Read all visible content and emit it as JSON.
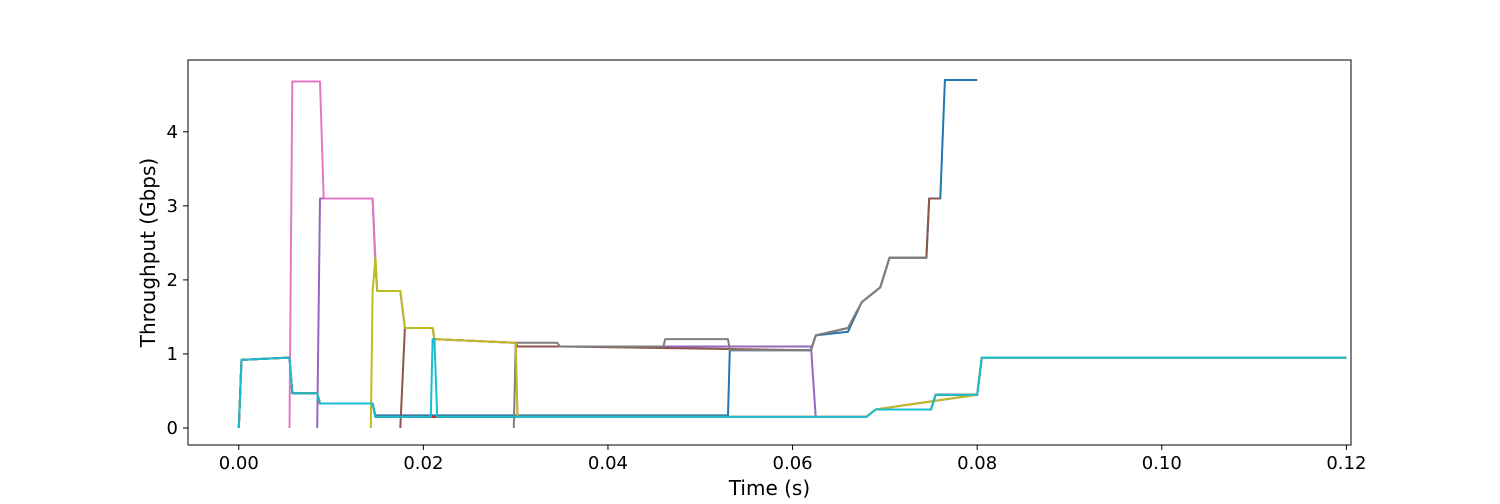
{
  "chart_data": {
    "type": "line",
    "title": "",
    "xlabel": "Time (s)",
    "ylabel": "Throughput (Gbps)",
    "xlim": [
      -0.0055,
      0.1205
    ],
    "ylim": [
      -0.23,
      4.97
    ],
    "x_ticks": [
      0.0,
      0.02,
      0.04,
      0.06,
      0.08,
      0.1,
      0.12
    ],
    "x_tick_labels": [
      "0.00",
      "0.02",
      "0.04",
      "0.06",
      "0.08",
      "0.10",
      "0.12"
    ],
    "y_ticks": [
      0,
      1,
      2,
      3,
      4
    ],
    "y_tick_labels": [
      "0",
      "1",
      "2",
      "3",
      "4"
    ],
    "grid": false,
    "legend": "none",
    "series": [
      {
        "color": "#1f77b4",
        "points": [
          [
            0,
            0
          ],
          [
            0.0003,
            0.92
          ],
          [
            0.0055,
            0.95
          ],
          [
            0.0058,
            0.47
          ],
          [
            0.0085,
            0.47
          ],
          [
            0.0088,
            0.33
          ],
          [
            0.0145,
            0.33
          ],
          [
            0.0148,
            0.17
          ],
          [
            0.053,
            0.17
          ],
          [
            0.0532,
            1.05
          ],
          [
            0.062,
            1.05
          ],
          [
            0.0625,
            1.25
          ],
          [
            0.066,
            1.3
          ],
          [
            0.0675,
            1.7
          ],
          [
            0.0695,
            1.9
          ],
          [
            0.0705,
            2.3
          ],
          [
            0.0745,
            2.3
          ],
          [
            0.0748,
            3.1
          ],
          [
            0.076,
            3.1
          ],
          [
            0.0765,
            4.7
          ],
          [
            0.08,
            4.7
          ]
        ]
      },
      {
        "color": "#ff7f0e",
        "points": [
          [
            0,
            0
          ],
          [
            0.0003,
            0.92
          ],
          [
            0.0055,
            0.95
          ],
          [
            0.0058,
            0.47
          ],
          [
            0.0085,
            0.47
          ],
          [
            0.0088,
            0.33
          ],
          [
            0.0145,
            0.33
          ],
          [
            0.0148,
            0.15
          ],
          [
            0.068,
            0.15
          ],
          [
            0.069,
            0.25
          ],
          [
            0.075,
            0.25
          ],
          [
            0.0755,
            0.45
          ],
          [
            0.08,
            0.45
          ],
          [
            0.0805,
            0.95
          ],
          [
            0.12,
            0.95
          ]
        ]
      },
      {
        "color": "#2ca02c",
        "points": [
          [
            0,
            0
          ],
          [
            0.0003,
            0.92
          ],
          [
            0.0055,
            0.95
          ],
          [
            0.0058,
            0.47
          ],
          [
            0.0085,
            0.47
          ],
          [
            0.0088,
            0.33
          ],
          [
            0.0145,
            0.33
          ],
          [
            0.0148,
            0.15
          ],
          [
            0.068,
            0.15
          ],
          [
            0.069,
            0.25
          ],
          [
            0.075,
            0.25
          ],
          [
            0.0755,
            0.45
          ],
          [
            0.08,
            0.45
          ],
          [
            0.0805,
            0.95
          ],
          [
            0.12,
            0.95
          ]
        ]
      },
      {
        "color": "#d62728",
        "points": [
          [
            0,
            0
          ],
          [
            0.0003,
            0.92
          ],
          [
            0.0055,
            0.95
          ],
          [
            0.0058,
            0.47
          ],
          [
            0.0085,
            0.47
          ],
          [
            0.0088,
            0.33
          ],
          [
            0.0145,
            0.33
          ],
          [
            0.0148,
            0.15
          ],
          [
            0.068,
            0.15
          ],
          [
            0.069,
            0.25
          ],
          [
            0.075,
            0.25
          ],
          [
            0.0755,
            0.45
          ],
          [
            0.08,
            0.45
          ],
          [
            0.0805,
            0.95
          ],
          [
            0.12,
            0.95
          ]
        ]
      },
      {
        "color": "#9467bd",
        "points": [
          [
            0.0085,
            0
          ],
          [
            0.0088,
            3.1
          ],
          [
            0.0145,
            3.1
          ],
          [
            0.0148,
            2.2
          ],
          [
            0.015,
            1.85
          ],
          [
            0.0175,
            1.85
          ],
          [
            0.018,
            1.35
          ],
          [
            0.021,
            1.35
          ],
          [
            0.0212,
            1.2
          ],
          [
            0.03,
            1.15
          ],
          [
            0.0302,
            1.1
          ],
          [
            0.062,
            1.1
          ],
          [
            0.0625,
            0.15
          ],
          [
            0.068,
            0.15
          ],
          [
            0.069,
            0.25
          ],
          [
            0.08,
            0.45
          ],
          [
            0.0805,
            0.95
          ],
          [
            0.12,
            0.95
          ]
        ]
      },
      {
        "color": "#8c564b",
        "points": [
          [
            0.0175,
            0
          ],
          [
            0.018,
            1.35
          ],
          [
            0.021,
            1.35
          ],
          [
            0.0212,
            1.2
          ],
          [
            0.03,
            1.15
          ],
          [
            0.0302,
            1.1
          ],
          [
            0.0345,
            1.1
          ],
          [
            0.0348,
            1.1
          ],
          [
            0.062,
            1.05
          ],
          [
            0.0625,
            1.25
          ],
          [
            0.066,
            1.35
          ],
          [
            0.0675,
            1.7
          ],
          [
            0.0695,
            1.9
          ],
          [
            0.0705,
            2.3
          ],
          [
            0.0745,
            2.3
          ],
          [
            0.0748,
            3.1
          ],
          [
            0.076,
            3.1
          ]
        ]
      },
      {
        "color": "#e377c2",
        "points": [
          [
            0.0055,
            0
          ],
          [
            0.0058,
            4.68
          ],
          [
            0.0088,
            4.68
          ],
          [
            0.0092,
            3.1
          ],
          [
            0.0145,
            3.1
          ],
          [
            0.0148,
            2.3
          ],
          [
            0.015,
            1.85
          ],
          [
            0.0175,
            1.85
          ],
          [
            0.018,
            1.35
          ],
          [
            0.021,
            1.35
          ],
          [
            0.0212,
            1.2
          ],
          [
            0.03,
            1.15
          ],
          [
            0.0302,
            0.15
          ],
          [
            0.068,
            0.15
          ],
          [
            0.069,
            0.25
          ],
          [
            0.08,
            0.45
          ],
          [
            0.0805,
            0.95
          ],
          [
            0.12,
            0.95
          ]
        ]
      },
      {
        "color": "#7f7f7f",
        "points": [
          [
            0.0298,
            0
          ],
          [
            0.03,
            1.15
          ],
          [
            0.0345,
            1.15
          ],
          [
            0.0348,
            1.1
          ],
          [
            0.046,
            1.1
          ],
          [
            0.0462,
            1.2
          ],
          [
            0.053,
            1.2
          ],
          [
            0.0532,
            1.05
          ],
          [
            0.062,
            1.05
          ],
          [
            0.0625,
            1.25
          ],
          [
            0.066,
            1.35
          ],
          [
            0.0675,
            1.7
          ],
          [
            0.0695,
            1.9
          ],
          [
            0.0705,
            2.3
          ],
          [
            0.0745,
            2.3
          ]
        ]
      },
      {
        "color": "#bcbd22",
        "points": [
          [
            0.0143,
            0
          ],
          [
            0.0145,
            1.85
          ],
          [
            0.0148,
            2.3
          ],
          [
            0.015,
            1.85
          ],
          [
            0.0175,
            1.85
          ],
          [
            0.018,
            1.35
          ],
          [
            0.021,
            1.35
          ],
          [
            0.0212,
            1.2
          ],
          [
            0.03,
            1.15
          ],
          [
            0.0302,
            0.15
          ],
          [
            0.068,
            0.15
          ],
          [
            0.069,
            0.25
          ],
          [
            0.08,
            0.45
          ],
          [
            0.0805,
            0.95
          ],
          [
            0.12,
            0.95
          ]
        ]
      },
      {
        "color": "#17becf",
        "points": [
          [
            0,
            0
          ],
          [
            0.0003,
            0.92
          ],
          [
            0.0055,
            0.95
          ],
          [
            0.0058,
            0.47
          ],
          [
            0.0085,
            0.47
          ],
          [
            0.0088,
            0.33
          ],
          [
            0.0145,
            0.33
          ],
          [
            0.0148,
            0.15
          ],
          [
            0.0208,
            0.15
          ],
          [
            0.021,
            1.2
          ],
          [
            0.0212,
            1.2
          ],
          [
            0.0215,
            0.15
          ],
          [
            0.068,
            0.15
          ],
          [
            0.069,
            0.25
          ],
          [
            0.075,
            0.25
          ],
          [
            0.0755,
            0.45
          ],
          [
            0.08,
            0.45
          ],
          [
            0.0805,
            0.95
          ],
          [
            0.12,
            0.95
          ]
        ]
      }
    ]
  }
}
